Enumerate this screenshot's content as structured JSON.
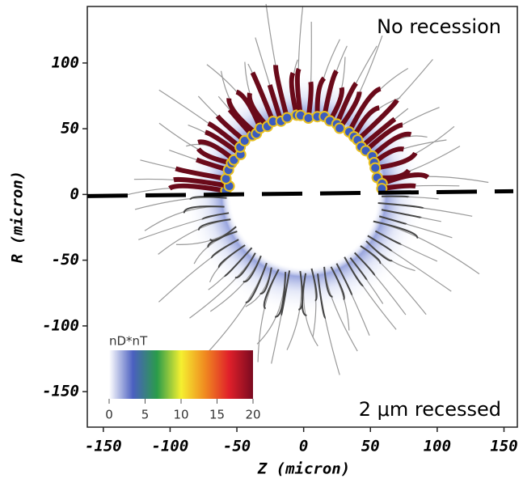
{
  "chart_data": {
    "type": "image",
    "xlabel": "Z (micron)",
    "ylabel": "R (micron)",
    "xlim": [
      -162,
      160
    ],
    "ylim": [
      -177,
      143
    ],
    "xticks": [
      -150,
      -100,
      -50,
      0,
      50,
      100,
      150
    ],
    "yticks": [
      -150,
      -100,
      -50,
      0,
      50,
      100
    ],
    "reference_line_y": 0,
    "annotations": [
      "No recession",
      "2 μm recessed"
    ],
    "colorbar": {
      "label": "nD*nT",
      "lim": [
        0,
        20
      ],
      "ticks": [
        0,
        5,
        10,
        15,
        20
      ],
      "colors": [
        "#ffffff",
        "#4a5fc0",
        "#2a9c4a",
        "#f5f030",
        "#f08a20",
        "#e0202a",
        "#7a0a20"
      ]
    }
  }
}
